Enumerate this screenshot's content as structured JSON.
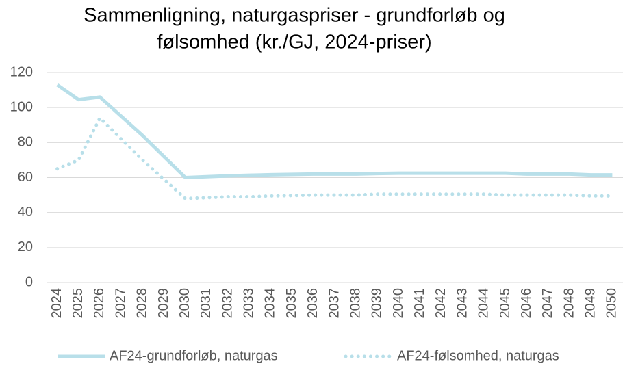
{
  "chart_data": {
    "type": "line",
    "title": [
      "Sammenligning, naturgaspriser - grundforløb og",
      "følsomhed (kr./GJ, 2024-priser)"
    ],
    "categories": [
      "2024",
      "2025",
      "2026",
      "2027",
      "2028",
      "2029",
      "2030",
      "2031",
      "2032",
      "2033",
      "2034",
      "2035",
      "2036",
      "2037",
      "2038",
      "2039",
      "2040",
      "2041",
      "2042",
      "2043",
      "2044",
      "2045",
      "2046",
      "2047",
      "2048",
      "2049",
      "2050"
    ],
    "series": [
      {
        "name": "AF24-grundforløb, naturgas",
        "color": "#b8dfe9",
        "dash": "solid",
        "values": [
          113,
          104.5,
          106,
          95,
          84,
          72,
          60,
          60.5,
          61,
          61.3,
          61.6,
          61.8,
          62,
          62,
          62,
          62.3,
          62.5,
          62.5,
          62.5,
          62.5,
          62.5,
          62.5,
          62,
          62,
          62,
          61.5,
          61.5
        ]
      },
      {
        "name": "AF24-følsomhed, naturgas",
        "color": "#b8dfe9",
        "dash": "dotted",
        "values": [
          65,
          70,
          94,
          82,
          70,
          59,
          48,
          48.5,
          49,
          49,
          49.5,
          49.7,
          50,
          50,
          50,
          50.5,
          50.5,
          50.5,
          50.5,
          50.5,
          50.5,
          50,
          50,
          50,
          50,
          49.5,
          49.5
        ]
      }
    ],
    "ylim": [
      0,
      120
    ],
    "yticks": [
      0,
      20,
      40,
      60,
      80,
      100,
      120
    ],
    "grid": true
  }
}
